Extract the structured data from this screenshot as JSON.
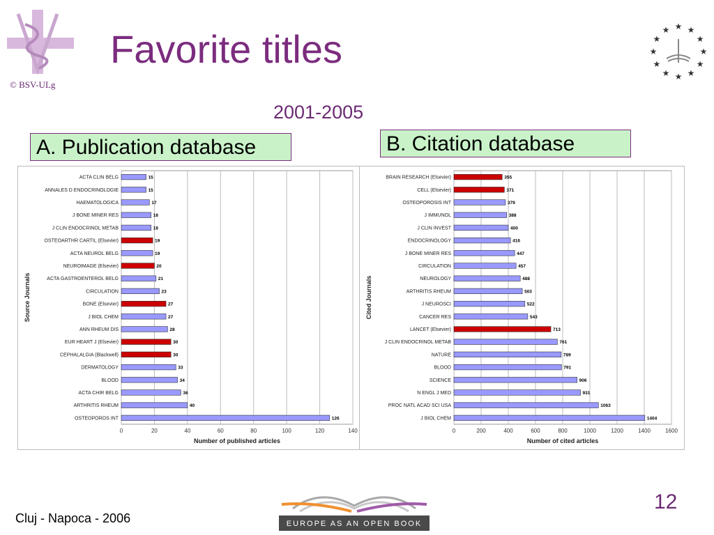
{
  "slide": {
    "title": "Favorite titles",
    "copyright": "© BSV-ULg",
    "period": "2001-2005",
    "label_a": "A. Publication database",
    "label_b": "B. Citation database",
    "footer": "Cluj - Napoca - 2006",
    "page_number": "12",
    "bottom_logo_text": "EUROPE AS AN OPEN BOOK"
  },
  "colors": {
    "blue_bar": "#9999ff",
    "red_bar": "#cc0000",
    "title": "#7b2c7e"
  },
  "chart_data": [
    {
      "type": "bar",
      "orientation": "horizontal",
      "ylabel": "Source Journals",
      "xlabel": "Number of published articles",
      "xlim": [
        0,
        140
      ],
      "xticks": [
        0,
        20,
        40,
        60,
        80,
        100,
        120,
        140
      ],
      "grid": true,
      "categories": [
        "ACTA CLIN BELG",
        "ANNALES D ENDOCRINOLOGIE",
        "HAEMATOLOGICA",
        "J BONE MINER RES",
        "J CLIN ENDOCRINOL METAB",
        "OSTEOARTHR CARTIL (Elsevier)",
        "ACTA NEUROL BELG",
        "NEUROIMAGE (Elsevier)",
        "ACTA GASTROENTEROL BELG",
        "CIRCULATION",
        "BONE (Elsevier)",
        "J BIOL CHEM",
        "ANN RHEUM DIS",
        "EUR HEART J (Elsevier)",
        "CEPHALALGIA (Blackwell)",
        "DERMATOLOGY",
        "BLOOD",
        "ACTA CHIR BELG",
        "ARTHRITIS RHEUM",
        "OSTEOPOROS INT"
      ],
      "values": [
        15,
        15,
        17,
        18,
        18,
        19,
        19,
        20,
        21,
        23,
        27,
        27,
        28,
        30,
        30,
        33,
        34,
        36,
        40,
        126
      ],
      "highlight": [
        false,
        false,
        false,
        false,
        false,
        true,
        false,
        true,
        false,
        false,
        true,
        false,
        false,
        true,
        true,
        false,
        false,
        false,
        false,
        false
      ]
    },
    {
      "type": "bar",
      "orientation": "horizontal",
      "ylabel": "Cited Journals",
      "xlabel": "Number of cited articles",
      "xlim": [
        0,
        1600
      ],
      "xticks": [
        0,
        200,
        400,
        600,
        800,
        1000,
        1200,
        1400,
        1600
      ],
      "grid": true,
      "categories": [
        "BRAIN RESEARCH (Elsevier)",
        "CELL (Elsevier)",
        "OSTEOPOROSIS INT",
        "J IMMUNOL",
        "J CLIN INVEST",
        "ENDOCRINOLOGY",
        "J BONE MINER RES",
        "CIRCULATION",
        "NEUROLOGY",
        "ARTHRITIS RHEUM",
        "J NEUROSCI",
        "CANCER RES",
        "LANCET (Elsevier)",
        "J CLIN ENDOCRINOL METAB",
        "NATURE",
        "BLOOD",
        "SCIENCE",
        "N ENGL J MED",
        "PROC NATL ACAD SCI USA",
        "J BIOL CHEM"
      ],
      "values": [
        355,
        371,
        379,
        388,
        400,
        416,
        447,
        457,
        488,
        503,
        522,
        543,
        713,
        761,
        789,
        791,
        906,
        931,
        1063,
        1404
      ],
      "highlight": [
        true,
        true,
        false,
        false,
        false,
        false,
        false,
        false,
        false,
        false,
        false,
        false,
        true,
        false,
        false,
        false,
        false,
        false,
        false,
        false
      ]
    }
  ]
}
